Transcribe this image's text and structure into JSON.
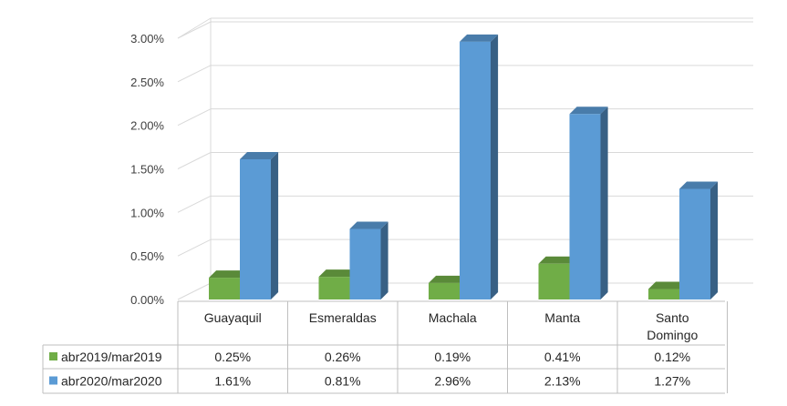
{
  "chart_data": {
    "type": "bar",
    "categories": [
      "Guayaquil",
      "Esmeraldas",
      "Machala",
      "Manta",
      "Santo Domingo"
    ],
    "series": [
      {
        "name": "abr2019/mar2019",
        "values": [
          0.25,
          0.26,
          0.19,
          0.41,
          0.12
        ],
        "color": "#70AD47",
        "labels": [
          "0.25%",
          "0.26%",
          "0.19%",
          "0.41%",
          "0.12%"
        ]
      },
      {
        "name": "abr2020/mar2020",
        "values": [
          1.61,
          0.81,
          2.96,
          2.13,
          1.27
        ],
        "color": "#5B9BD5",
        "labels": [
          "1.61%",
          "0.81%",
          "2.96%",
          "2.13%",
          "1.27%"
        ]
      }
    ],
    "y_ticks": [
      "0.00%",
      "0.50%",
      "1.00%",
      "1.50%",
      "2.00%",
      "2.50%",
      "3.00%"
    ],
    "ylim": [
      0,
      3
    ],
    "grid": true,
    "style": "3d-column",
    "data_table": true
  }
}
